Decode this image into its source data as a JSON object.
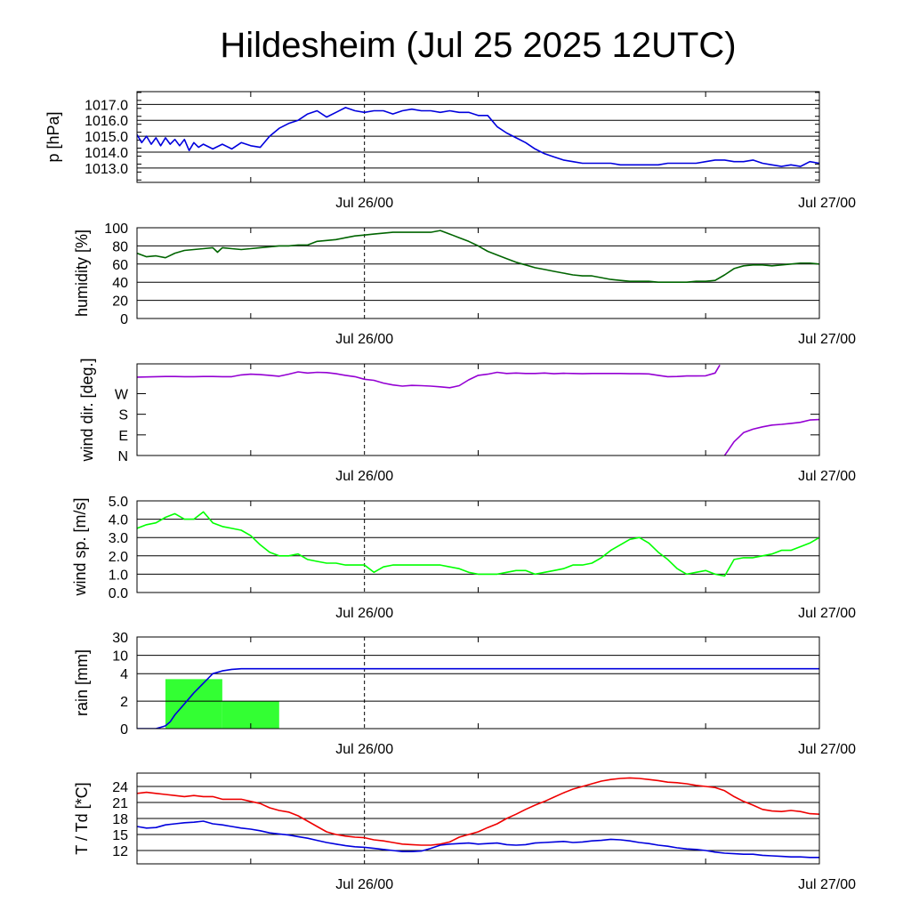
{
  "title": "Hildesheim (Jul 25 2025 12UTC)",
  "chart_data": [
    {
      "type": "line",
      "ylabel": "p [hPa]",
      "ylim": [
        1012.1,
        1017.8
      ],
      "yticks": [
        "1013.0",
        "1014.0",
        "1015.0",
        "1016.0",
        "1017.0"
      ],
      "xticks": [
        "Jul 26/00",
        "Jul 27/00"
      ],
      "x_unit": "hours since Jul 25 12UTC",
      "grid": true,
      "series": [
        {
          "color": "#0000dd",
          "x": [
            0,
            0.5,
            1,
            1.5,
            2,
            2.5,
            3,
            3.5,
            4,
            4.5,
            5,
            5.5,
            6,
            6.5,
            7,
            8,
            9,
            10,
            11,
            12,
            13,
            14,
            15,
            16,
            17,
            18,
            19,
            20,
            21,
            22,
            23,
            24,
            25,
            26,
            27,
            28,
            29,
            30,
            31,
            32,
            33,
            34,
            35,
            36,
            37,
            38,
            39,
            40,
            41,
            42,
            43,
            44,
            45,
            46,
            47,
            48,
            49,
            50,
            51,
            52,
            53,
            54,
            55,
            56,
            57,
            58,
            59,
            60,
            61,
            62,
            63,
            64,
            65,
            66,
            67,
            68,
            69,
            70,
            71,
            72
          ],
          "values": [
            1015.1,
            1014.6,
            1015.0,
            1014.5,
            1014.9,
            1014.4,
            1014.9,
            1014.5,
            1014.8,
            1014.4,
            1014.8,
            1014.1,
            1014.6,
            1014.3,
            1014.5,
            1014.2,
            1014.5,
            1014.2,
            1014.6,
            1014.4,
            1014.3,
            1015.0,
            1015.5,
            1015.8,
            1016.0,
            1016.4,
            1016.6,
            1016.2,
            1016.5,
            1016.8,
            1016.6,
            1016.5,
            1016.6,
            1016.6,
            1016.4,
            1016.6,
            1016.7,
            1016.6,
            1016.6,
            1016.5,
            1016.6,
            1016.5,
            1016.5,
            1016.3,
            1016.3,
            1015.6,
            1015.2,
            1014.9,
            1014.6,
            1014.2,
            1013.9,
            1013.7,
            1013.5,
            1013.4,
            1013.3,
            1013.3,
            1013.3,
            1013.3,
            1013.2,
            1013.2,
            1013.2,
            1013.2,
            1013.2,
            1013.3,
            1013.3,
            1013.3,
            1013.3,
            1013.4,
            1013.5,
            1013.5,
            1013.4,
            1013.4,
            1013.5,
            1013.3,
            1013.2,
            1013.1,
            1013.2,
            1013.1,
            1013.4,
            1013.3
          ]
        }
      ]
    },
    {
      "type": "line",
      "ylabel": "humidity [%]",
      "ylim": [
        0,
        100
      ],
      "yticks": [
        "0",
        "20",
        "40",
        "60",
        "80",
        "100"
      ],
      "xticks": [
        "Jul 26/00",
        "Jul 27/00"
      ],
      "grid": true,
      "series": [
        {
          "color": "#006400",
          "x": [
            0,
            1,
            2,
            3,
            4,
            5,
            6,
            7,
            8,
            8.5,
            9,
            10,
            11,
            12,
            13,
            14,
            15,
            16,
            17,
            18,
            19,
            20,
            21,
            22,
            23,
            24,
            25,
            26,
            27,
            28,
            29,
            30,
            31,
            32,
            33,
            34,
            35,
            36,
            37,
            38,
            39,
            40,
            41,
            42,
            43,
            44,
            45,
            46,
            47,
            48,
            49,
            50,
            51,
            52,
            53,
            54,
            55,
            56,
            57,
            58,
            59,
            60,
            61,
            62,
            63,
            64,
            65,
            66,
            67,
            68,
            69,
            70,
            71,
            72
          ],
          "values": [
            72,
            68,
            69,
            67,
            72,
            75,
            76,
            77,
            78,
            73,
            78,
            77,
            76,
            77,
            78,
            79,
            80,
            80,
            81,
            81,
            85,
            86,
            87,
            89,
            91,
            92,
            93,
            94,
            95,
            95,
            95,
            95,
            95,
            97,
            93,
            89,
            85,
            80,
            74,
            70,
            66,
            62,
            59,
            56,
            54,
            52,
            50,
            48,
            47,
            47,
            45,
            43,
            42,
            41,
            41,
            41,
            40,
            40,
            40,
            40,
            41,
            41,
            42,
            48,
            55,
            58,
            59,
            59,
            58,
            59,
            60,
            61,
            61,
            60
          ]
        }
      ]
    },
    {
      "type": "line",
      "ylabel": "wind dir. [deg.]",
      "ylim": [
        0,
        400
      ],
      "yticks": [
        "N",
        "E",
        "S",
        "W"
      ],
      "xticks": [
        "Jul 26/00",
        "Jul 27/00"
      ],
      "grid": false,
      "series": [
        {
          "color": "#9400d3",
          "x": [
            0,
            1,
            2,
            3,
            4,
            5,
            6,
            7,
            8,
            9,
            10,
            11,
            12,
            13,
            14,
            15,
            16,
            17,
            18,
            19,
            20,
            21,
            22,
            23,
            24,
            25,
            26,
            27,
            28,
            29,
            30,
            31,
            32,
            33,
            34,
            35,
            36,
            37,
            38,
            39,
            40,
            41,
            42,
            43,
            44,
            45,
            46,
            47,
            48,
            49,
            50,
            51,
            52,
            53,
            54,
            55,
            56,
            57,
            58,
            59,
            60,
            61,
            61.5
          ],
          "values": [
            342,
            343,
            344,
            345,
            345,
            344,
            344,
            345,
            345,
            344,
            344,
            352,
            355,
            353,
            350,
            346,
            355,
            365,
            360,
            363,
            362,
            357,
            350,
            344,
            333,
            328,
            316,
            308,
            303,
            306,
            305,
            303,
            300,
            296,
            305,
            330,
            350,
            355,
            363,
            358,
            360,
            358,
            358,
            360,
            357,
            359,
            358,
            357,
            358,
            358,
            358,
            358,
            357,
            357,
            356,
            350,
            344,
            345,
            347,
            347,
            348,
            360,
            395
          ]
        },
        {
          "color": "#9400d3",
          "x": [
            62,
            62.5,
            63,
            63.5,
            64,
            65,
            66,
            67,
            68,
            69,
            70,
            71,
            72
          ],
          "values": [
            0,
            30,
            60,
            80,
            100,
            115,
            125,
            133,
            136,
            140,
            145,
            155,
            157
          ]
        }
      ]
    },
    {
      "type": "line",
      "ylabel": "wind sp. [m/s]",
      "ylim": [
        0,
        5
      ],
      "yticks": [
        "0.0",
        "1.0",
        "2.0",
        "3.0",
        "4.0",
        "5.0"
      ],
      "xticks": [
        "Jul 26/00",
        "Jul 27/00"
      ],
      "grid": true,
      "series": [
        {
          "color": "#00ff00",
          "x": [
            0,
            1,
            2,
            3,
            4,
            5,
            6,
            7,
            8,
            9,
            10,
            11,
            12,
            13,
            14,
            15,
            16,
            17,
            18,
            19,
            20,
            21,
            22,
            23,
            24,
            25,
            26,
            27,
            28,
            29,
            30,
            31,
            32,
            33,
            34,
            35,
            36,
            37,
            38,
            39,
            40,
            41,
            42,
            43,
            44,
            45,
            46,
            47,
            48,
            49,
            50,
            51,
            52,
            53,
            54,
            55,
            56,
            57,
            58,
            59,
            60,
            61,
            62,
            63,
            64,
            65,
            66,
            67,
            68,
            69,
            70,
            71,
            72
          ],
          "values": [
            3.5,
            3.7,
            3.8,
            4.1,
            4.3,
            4.0,
            4.0,
            4.4,
            3.8,
            3.6,
            3.5,
            3.4,
            3.1,
            2.6,
            2.2,
            2.0,
            2.0,
            2.1,
            1.8,
            1.7,
            1.6,
            1.6,
            1.5,
            1.5,
            1.5,
            1.1,
            1.4,
            1.5,
            1.5,
            1.5,
            1.5,
            1.5,
            1.5,
            1.4,
            1.3,
            1.1,
            1.0,
            1.0,
            1.0,
            1.1,
            1.2,
            1.2,
            1.0,
            1.1,
            1.2,
            1.3,
            1.5,
            1.5,
            1.6,
            1.9,
            2.3,
            2.6,
            2.9,
            3.0,
            2.7,
            2.2,
            1.8,
            1.3,
            1.0,
            1.1,
            1.2,
            1.0,
            0.9,
            1.8,
            1.9,
            1.9,
            2.0,
            2.1,
            2.3,
            2.3,
            2.5,
            2.7,
            3.0
          ]
        }
      ]
    },
    {
      "type": "bar",
      "ylabel": "rain [mm]",
      "ylim": [
        0,
        30
      ],
      "yticks": [
        "0",
        "2",
        "4",
        "10",
        "30"
      ],
      "ytick_values": [
        0,
        2,
        4,
        10,
        30
      ],
      "xticks": [
        "Jul 26/00",
        "Jul 27/00"
      ],
      "grid": true,
      "bars": [
        {
          "x_start": 3,
          "x_end": 9,
          "value": 3.6,
          "color": "#33ff33"
        },
        {
          "x_start": 9,
          "x_end": 15,
          "value": 2.0,
          "color": "#33ff33"
        }
      ],
      "series": [
        {
          "name": "accumulated",
          "color": "#0000dd",
          "x": [
            0,
            2,
            2.5,
            3,
            3.5,
            4,
            5,
            6,
            7,
            8,
            9,
            10,
            11,
            12,
            20,
            30,
            40,
            50,
            60,
            72
          ],
          "values": [
            0,
            0,
            0.1,
            0.2,
            0.5,
            1.0,
            1.8,
            2.6,
            3.3,
            4.0,
            4.9,
            5.4,
            5.6,
            5.6,
            5.6,
            5.6,
            5.6,
            5.6,
            5.6,
            5.6
          ]
        }
      ]
    },
    {
      "type": "line",
      "ylabel": "T / Td [*C]",
      "ylim": [
        9.5,
        26.5
      ],
      "yticks": [
        "12",
        "15",
        "18",
        "21",
        "24"
      ],
      "xticks": [
        "Jul 26/00",
        "Jul 27/00"
      ],
      "grid": true,
      "series": [
        {
          "color": "#ee0000",
          "x": [
            0,
            1,
            2,
            3,
            4,
            5,
            6,
            7,
            8,
            9,
            10,
            11,
            12,
            13,
            14,
            15,
            16,
            17,
            18,
            19,
            20,
            21,
            22,
            23,
            24,
            25,
            26,
            27,
            28,
            29,
            30,
            31,
            32,
            33,
            34,
            35,
            36,
            37,
            38,
            39,
            40,
            41,
            42,
            43,
            44,
            45,
            46,
            47,
            48,
            49,
            50,
            51,
            52,
            53,
            54,
            55,
            56,
            57,
            58,
            59,
            60,
            61,
            62,
            63,
            64,
            65,
            66,
            67,
            68,
            69,
            70,
            71,
            72
          ],
          "values": [
            22.7,
            22.9,
            22.7,
            22.5,
            22.3,
            22.1,
            22.3,
            22.1,
            22.1,
            21.6,
            21.6,
            21.6,
            21.2,
            20.8,
            20.0,
            19.5,
            19.2,
            18.5,
            17.5,
            16.5,
            15.5,
            15.0,
            14.7,
            14.5,
            14.4,
            14.0,
            13.8,
            13.5,
            13.2,
            13.1,
            13.0,
            13.0,
            13.2,
            13.6,
            14.5,
            15.0,
            15.5,
            16.3,
            17.0,
            18.0,
            18.8,
            19.7,
            20.5,
            21.2,
            22.0,
            22.8,
            23.5,
            24.0,
            24.5,
            25.0,
            25.3,
            25.5,
            25.6,
            25.5,
            25.3,
            25.1,
            24.8,
            24.7,
            24.5,
            24.2,
            24.0,
            23.8,
            23.2,
            22.1,
            21.2,
            20.5,
            19.7,
            19.4,
            19.3,
            19.5,
            19.3,
            18.9,
            18.8
          ]
        },
        {
          "color": "#0000dd",
          "x": [
            0,
            1,
            2,
            3,
            4,
            5,
            6,
            7,
            8,
            9,
            10,
            11,
            12,
            13,
            14,
            15,
            16,
            17,
            18,
            19,
            20,
            21,
            22,
            23,
            24,
            25,
            26,
            27,
            28,
            29,
            30,
            31,
            32,
            33,
            34,
            35,
            36,
            37,
            38,
            39,
            40,
            41,
            42,
            43,
            44,
            45,
            46,
            47,
            48,
            49,
            50,
            51,
            52,
            53,
            54,
            55,
            56,
            57,
            58,
            59,
            60,
            61,
            62,
            63,
            64,
            65,
            66,
            67,
            68,
            69,
            70,
            71,
            72
          ],
          "values": [
            16.5,
            16.2,
            16.3,
            16.8,
            17.0,
            17.2,
            17.3,
            17.5,
            17.0,
            16.8,
            16.5,
            16.2,
            16.0,
            15.7,
            15.3,
            15.1,
            14.9,
            14.6,
            14.3,
            13.9,
            13.5,
            13.2,
            12.9,
            12.7,
            12.6,
            12.4,
            12.2,
            12.0,
            11.8,
            11.8,
            11.9,
            12.4,
            13.0,
            13.2,
            13.3,
            13.4,
            13.2,
            13.3,
            13.4,
            13.1,
            13.0,
            13.1,
            13.4,
            13.5,
            13.6,
            13.7,
            13.5,
            13.6,
            13.8,
            13.9,
            14.1,
            14.0,
            13.8,
            13.5,
            13.3,
            13.0,
            12.8,
            12.5,
            12.3,
            12.2,
            12.0,
            11.7,
            11.5,
            11.4,
            11.3,
            11.3,
            11.1,
            11.0,
            10.9,
            10.8,
            10.8,
            10.7,
            10.7
          ]
        }
      ]
    }
  ]
}
